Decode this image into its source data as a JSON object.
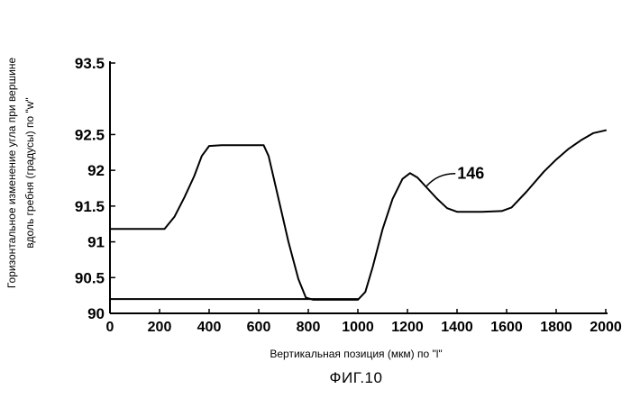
{
  "figure_caption": "ФИГ.10",
  "chart_data": {
    "type": "line",
    "ylabel_lines": [
      "Горизонтальное изменение угла при вершине",
      "вдоль гребня (градусы) по \"w\""
    ],
    "xlabel": "Вертикальная позиция (мкм) по \"l\"",
    "xlim": [
      0,
      2000
    ],
    "ylim": [
      90,
      93.5
    ],
    "xticks": [
      "0",
      "200",
      "400",
      "600",
      "800",
      "1000",
      "1200",
      "1400",
      "1600",
      "1800",
      "2000"
    ],
    "yticks": [
      "90",
      "90.5",
      "91",
      "91.5",
      "92",
      "92.5",
      "93.5"
    ],
    "grid": false,
    "annotation": {
      "text": "146",
      "x": 1270,
      "y": 91.93
    },
    "series": [
      {
        "name": "",
        "points": [
          [
            0,
            91.18
          ],
          [
            220,
            91.18
          ],
          [
            260,
            91.35
          ],
          [
            300,
            91.62
          ],
          [
            340,
            91.92
          ],
          [
            370,
            92.2
          ],
          [
            400,
            92.34
          ],
          [
            450,
            92.35
          ],
          [
            550,
            92.35
          ],
          [
            620,
            92.35
          ],
          [
            640,
            92.2
          ],
          [
            680,
            91.6
          ],
          [
            720,
            91.0
          ],
          [
            760,
            90.48
          ],
          [
            790,
            90.22
          ],
          [
            820,
            90.19
          ],
          [
            900,
            90.19
          ],
          [
            1000,
            90.19
          ],
          [
            1030,
            90.3
          ],
          [
            1060,
            90.65
          ],
          [
            1100,
            91.18
          ],
          [
            1140,
            91.6
          ],
          [
            1180,
            91.88
          ],
          [
            1210,
            91.96
          ],
          [
            1240,
            91.9
          ],
          [
            1280,
            91.75
          ],
          [
            1320,
            91.6
          ],
          [
            1360,
            91.47
          ],
          [
            1400,
            91.42
          ],
          [
            1500,
            91.42
          ],
          [
            1580,
            91.43
          ],
          [
            1620,
            91.48
          ],
          [
            1680,
            91.7
          ],
          [
            1750,
            91.98
          ],
          [
            1800,
            92.15
          ],
          [
            1850,
            92.3
          ],
          [
            1900,
            92.42
          ],
          [
            1950,
            92.52
          ],
          [
            2000,
            92.56
          ]
        ]
      },
      {
        "name": "",
        "points": [
          [
            0,
            90.2
          ],
          [
            800,
            90.2
          ],
          [
            1000,
            90.2
          ]
        ]
      }
    ]
  }
}
